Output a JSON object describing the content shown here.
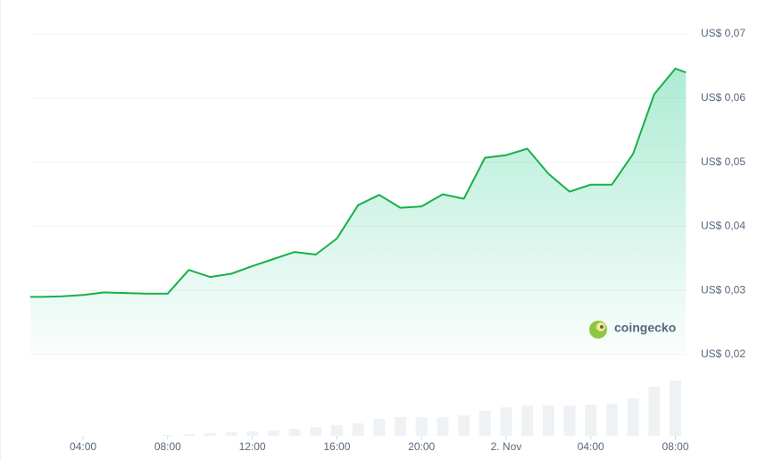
{
  "chart_data": {
    "type": "area",
    "x": [
      1.5,
      2,
      3,
      4,
      5,
      6,
      7,
      8,
      9,
      10,
      11,
      12,
      13,
      14,
      15,
      16,
      17,
      18,
      19,
      20,
      21,
      22,
      23,
      24,
      25,
      26,
      27,
      28,
      29,
      30,
      31,
      32,
      32.5
    ],
    "series": [
      {
        "color": "#16c784",
        "values": [
          0.029,
          0.029,
          0.0291,
          0.0293,
          0.0297,
          0.0296,
          0.0295,
          0.0295,
          0.0332,
          0.0321,
          0.0326,
          0.0338,
          0.0349,
          0.036,
          0.0356,
          0.0381,
          0.0433,
          0.0449,
          0.0429,
          0.0431,
          0.045,
          0.0443,
          0.0507,
          0.0511,
          0.0521,
          0.0482,
          0.0454,
          0.0465,
          0.0465,
          0.0513,
          0.0606,
          0.0646,
          0.064
        ]
      }
    ],
    "volume": {
      "color": "#eff2f5",
      "x": [
        8,
        9,
        10,
        11,
        12,
        13,
        14,
        15,
        16,
        17,
        18,
        19,
        20,
        21,
        22,
        23,
        24,
        25,
        26,
        27,
        28,
        29,
        30,
        31,
        32
      ],
      "values": [
        1,
        2,
        3,
        4,
        5,
        6,
        8,
        10,
        12,
        14,
        19,
        21,
        21,
        21,
        23,
        28,
        32,
        34,
        34,
        34,
        35,
        36,
        42,
        55,
        62
      ],
      "lim": [
        0,
        88
      ]
    },
    "xlim": [
      1.55,
      32.57
    ],
    "xticks": [
      {
        "value": 4,
        "label": "04:00"
      },
      {
        "value": 8,
        "label": "08:00"
      },
      {
        "value": 12,
        "label": "12:00"
      },
      {
        "value": 16,
        "label": "16:00"
      },
      {
        "value": 20,
        "label": "20:00"
      },
      {
        "value": 24,
        "label": "2. Nov"
      },
      {
        "value": 28,
        "label": "04:00"
      },
      {
        "value": 32,
        "label": "08:00"
      }
    ],
    "ylim": [
      0.02,
      0.07
    ],
    "yticks": [
      {
        "value": 0.02,
        "label": "US$ 0,02"
      },
      {
        "value": 0.03,
        "label": "US$ 0,03"
      },
      {
        "value": 0.04,
        "label": "US$ 0,04"
      },
      {
        "value": 0.05,
        "label": "US$ 0,05"
      },
      {
        "value": 0.06,
        "label": "US$ 0,06"
      },
      {
        "value": 0.07,
        "label": "US$ 0,07"
      }
    ],
    "grid": true,
    "line_color": "#18b04a",
    "watermark": "coingecko"
  }
}
